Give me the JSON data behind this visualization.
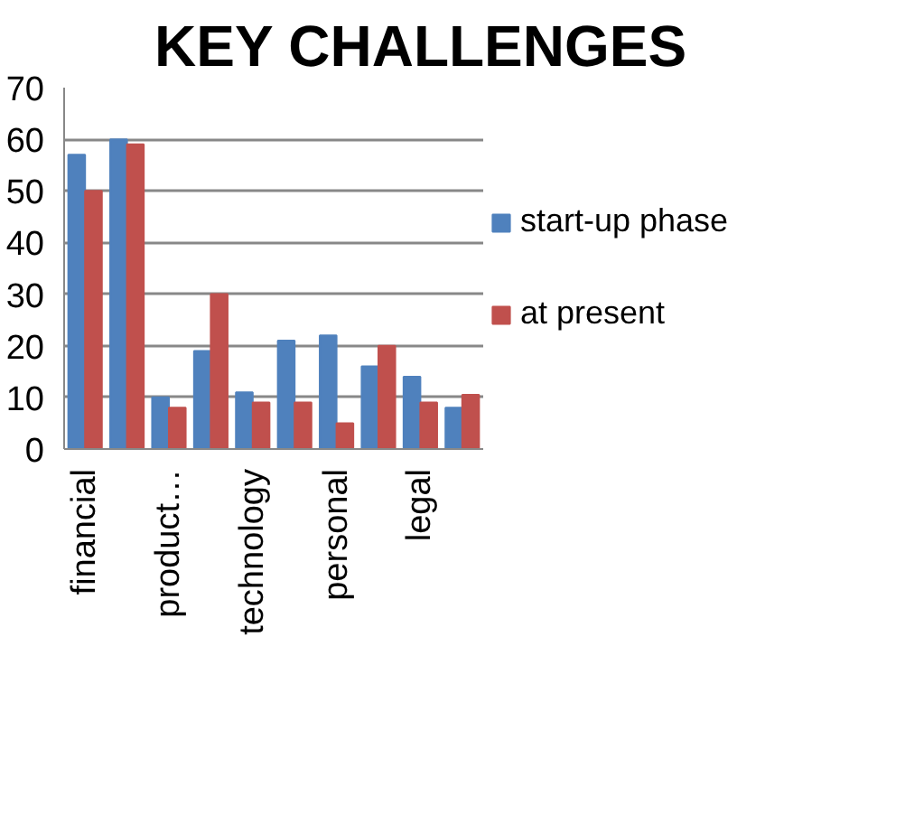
{
  "chart_data": {
    "type": "bar",
    "title": "KEY CHALLENGES",
    "categories": [
      "financial",
      null,
      "product…",
      null,
      "technology",
      null,
      "personal",
      null,
      "legal",
      null
    ],
    "series": [
      {
        "name": "start-up phase",
        "color": "#4f81bd",
        "values": [
          57,
          60,
          10,
          19,
          11,
          21,
          22,
          16,
          14,
          8
        ]
      },
      {
        "name": "at present",
        "color": "#c0504d",
        "values": [
          50,
          59,
          8,
          30,
          9,
          9,
          5,
          20,
          9,
          10.5
        ]
      }
    ],
    "ylim": [
      0,
      70
    ],
    "yticks": [
      0,
      10,
      20,
      30,
      40,
      50,
      60,
      70
    ],
    "grid": "y",
    "legend": "right"
  }
}
